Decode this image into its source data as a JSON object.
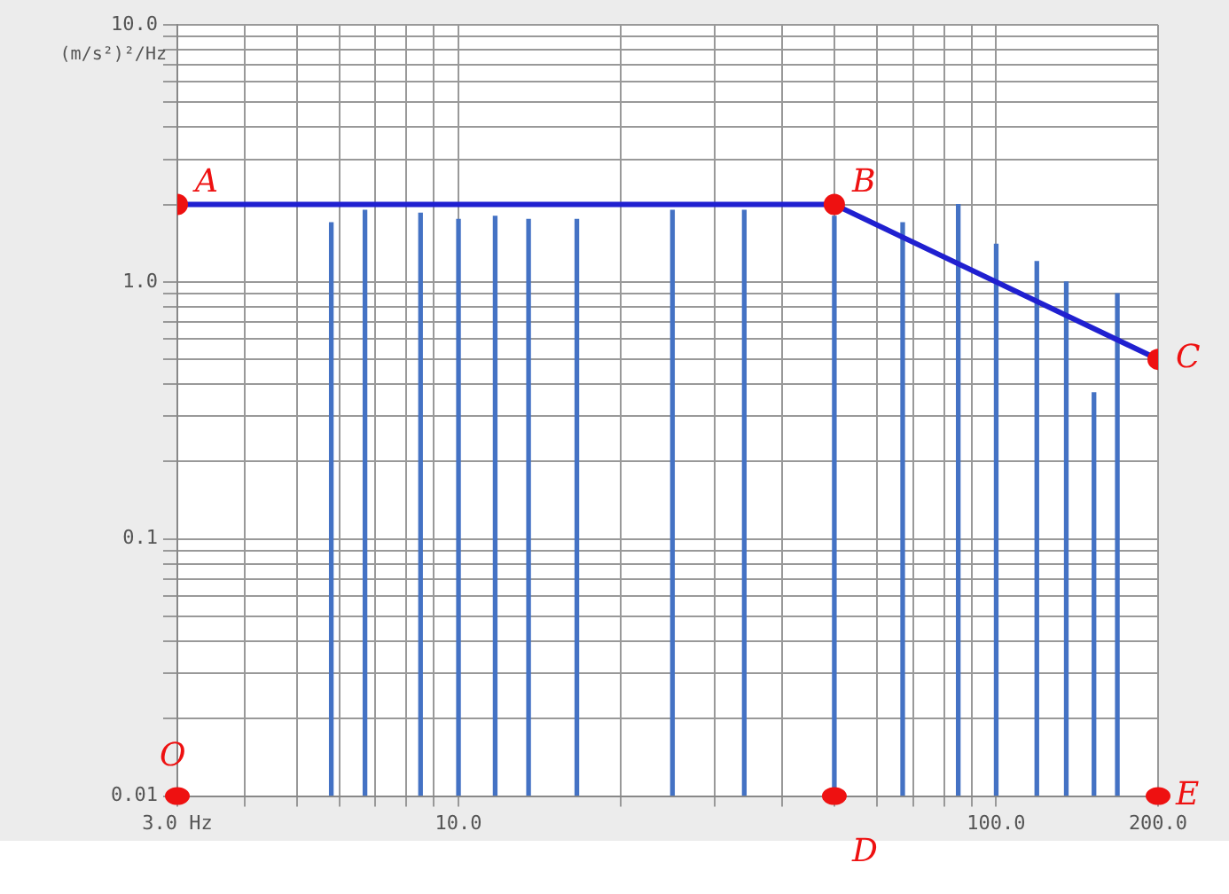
{
  "chart_data": {
    "type": "line",
    "ylabel": "(m/s²)²/Hz",
    "log": "xy",
    "grid": true,
    "legend": false,
    "marker": "circle",
    "xlim": [
      3,
      200
    ],
    "ylim": [
      0.01,
      10
    ],
    "xticks": [
      {
        "value": 3,
        "label": "3.0 Hz"
      },
      {
        "value": 4,
        "label": null
      },
      {
        "value": 5,
        "label": null
      },
      {
        "value": 6,
        "label": null
      },
      {
        "value": 7,
        "label": null
      },
      {
        "value": 8,
        "label": null
      },
      {
        "value": 9,
        "label": null
      },
      {
        "value": 10,
        "label": "10.0"
      },
      {
        "value": 20,
        "label": null
      },
      {
        "value": 30,
        "label": null
      },
      {
        "value": 40,
        "label": null
      },
      {
        "value": 50,
        "label": null
      },
      {
        "value": 60,
        "label": null
      },
      {
        "value": 70,
        "label": null
      },
      {
        "value": 80,
        "label": null
      },
      {
        "value": 90,
        "label": null
      },
      {
        "value": 100,
        "label": "100.0"
      },
      {
        "value": 200,
        "label": "200.0"
      }
    ],
    "yticks": [
      {
        "value": 0.01,
        "label": "0.01"
      },
      {
        "value": 0.02,
        "label": null
      },
      {
        "value": 0.03,
        "label": null
      },
      {
        "value": 0.04,
        "label": null
      },
      {
        "value": 0.05,
        "label": null
      },
      {
        "value": 0.06,
        "label": null
      },
      {
        "value": 0.07,
        "label": null
      },
      {
        "value": 0.08,
        "label": null
      },
      {
        "value": 0.09,
        "label": null
      },
      {
        "value": 0.1,
        "label": "0.1"
      },
      {
        "value": 0.2,
        "label": null
      },
      {
        "value": 0.3,
        "label": null
      },
      {
        "value": 0.4,
        "label": null
      },
      {
        "value": 0.5,
        "label": null
      },
      {
        "value": 0.6,
        "label": null
      },
      {
        "value": 0.7,
        "label": null
      },
      {
        "value": 0.8,
        "label": null
      },
      {
        "value": 0.9,
        "label": null
      },
      {
        "value": 1,
        "label": "1.0"
      },
      {
        "value": 2,
        "label": null
      },
      {
        "value": 3,
        "label": null
      },
      {
        "value": 4,
        "label": null
      },
      {
        "value": 5,
        "label": null
      },
      {
        "value": 6,
        "label": null
      },
      {
        "value": 7,
        "label": null
      },
      {
        "value": 8,
        "label": null
      },
      {
        "value": 9,
        "label": null
      },
      {
        "value": 10,
        "label": "10.0"
      }
    ],
    "series": [
      {
        "type": "bar",
        "color": "#4472c4",
        "x": [
          5.8,
          6.7,
          8.5,
          10,
          11.7,
          13.5,
          16.6,
          25,
          34,
          50,
          67,
          85,
          100,
          119,
          135,
          152,
          168
        ],
        "values": [
          1.7,
          1.9,
          1.85,
          1.75,
          1.8,
          1.75,
          1.75,
          1.9,
          1.9,
          1.8,
          1.7,
          2,
          1.4,
          1.2,
          1,
          0.37,
          0.9
        ]
      },
      {
        "color": "#2020d0",
        "x": [
          3,
          50,
          200
        ],
        "values": [
          2,
          2,
          0.5
        ]
      }
    ],
    "annotations": [
      {
        "text": "A",
        "x": 3,
        "y": 2
      },
      {
        "text": "B",
        "x": 50,
        "y": 2
      },
      {
        "text": "C",
        "x": 200,
        "y": 0.5
      },
      {
        "text": "O",
        "x": 3,
        "y": 0.01
      },
      {
        "text": "D",
        "x": 50,
        "y": 0.01
      },
      {
        "text": "E",
        "x": 200,
        "y": 0.01
      }
    ]
  }
}
